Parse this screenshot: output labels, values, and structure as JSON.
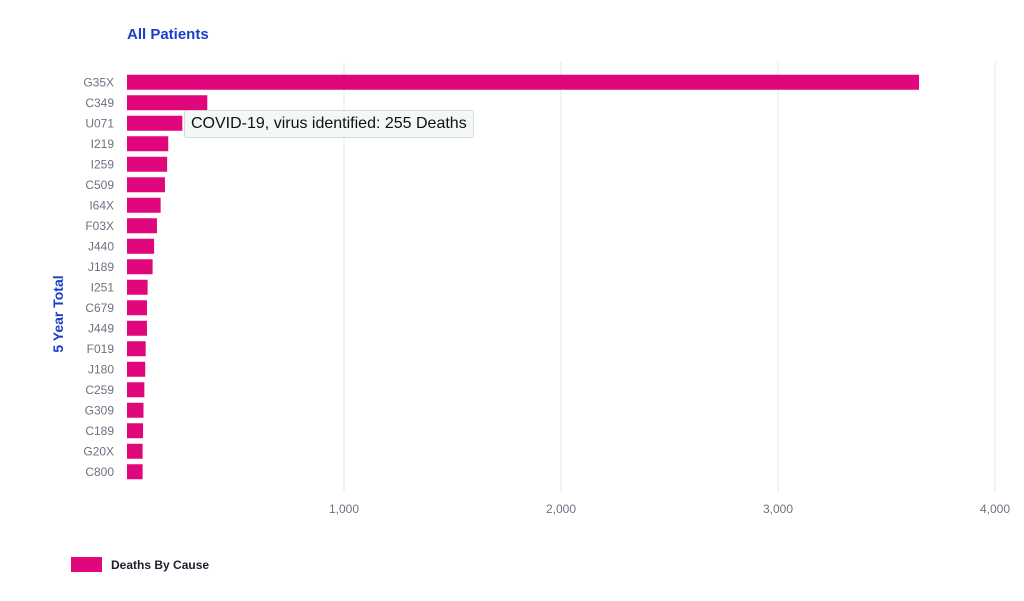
{
  "colors": {
    "bar": "#e0077d",
    "title": "#1a3ec7",
    "grid": "#e4e4e4",
    "tick": "#6b7280"
  },
  "chart_data": {
    "type": "bar",
    "orientation": "horizontal",
    "title": "All Patients",
    "ylabel": "5 Year Total",
    "xlabel": "",
    "categories": [
      "G35X",
      "C349",
      "U071",
      "I219",
      "I259",
      "C509",
      "I64X",
      "F03X",
      "J440",
      "J189",
      "I251",
      "C679",
      "J449",
      "F019",
      "J180",
      "C259",
      "G309",
      "C189",
      "G20X",
      "C800"
    ],
    "series": [
      {
        "name": "Deaths By Cause",
        "values": [
          3650,
          370,
          255,
          190,
          185,
          175,
          155,
          138,
          125,
          118,
          95,
          92,
          92,
          86,
          84,
          80,
          76,
          74,
          72,
          72
        ]
      }
    ],
    "xlim": [
      0,
      4000
    ],
    "xticks": [
      1000,
      2000,
      3000,
      4000
    ],
    "xtick_labels": [
      "1,000",
      "2,000",
      "3,000",
      "4,000"
    ],
    "grid": true,
    "legend": "bottom-left"
  },
  "tooltip": {
    "text": "COVID-19, virus identified: 255 Deaths"
  }
}
